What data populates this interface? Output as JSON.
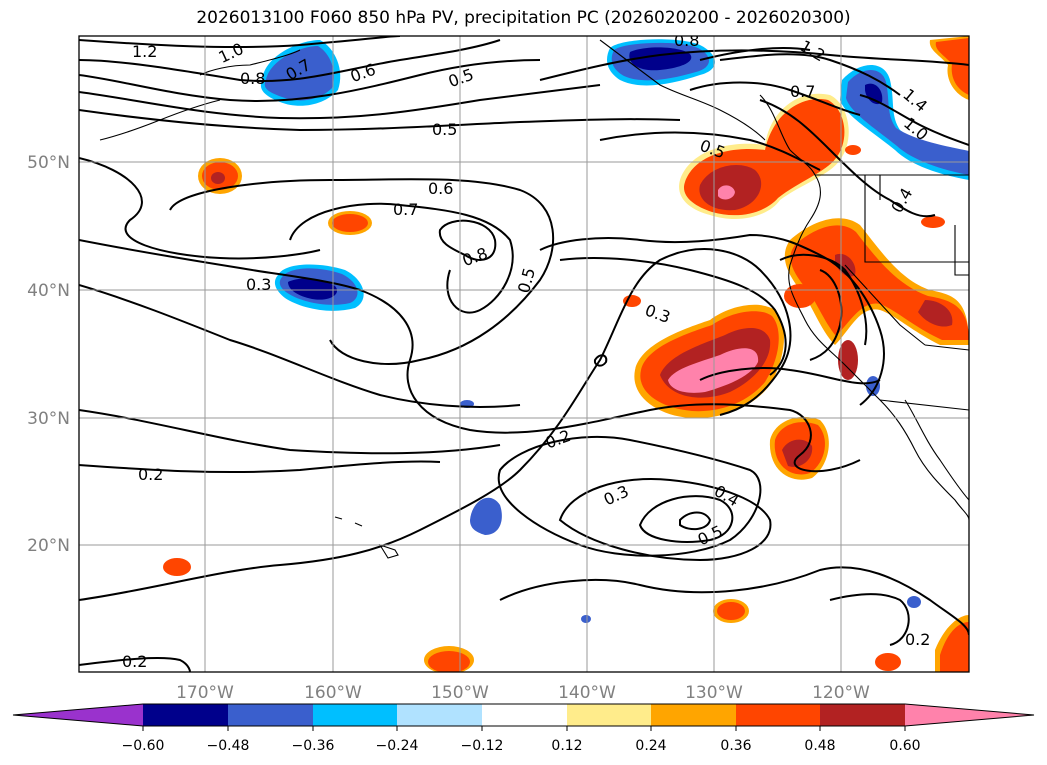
{
  "title": "2026013100 F060 850 hPa PV, precipitation PC (2026020200 - 2026020300)",
  "lon_ticks": [
    "170°W",
    "160°W",
    "150°W",
    "140°W",
    "130°W",
    "120°W"
  ],
  "lat_ticks": [
    "50°N",
    "40°N",
    "30°N",
    "20°N"
  ],
  "colorbar": {
    "colors": [
      "#9a32cd",
      "#00008b",
      "#3a5fcd",
      "#00bfff",
      "#b0e2ff",
      "#ffffff",
      "#ffec8b",
      "#ffa500",
      "#ff4500",
      "#b22222",
      "#ff82ab"
    ],
    "labels": [
      "−0.60",
      "−0.48",
      "−0.36",
      "−0.24",
      "−0.12",
      "0.12",
      "0.24",
      "0.36",
      "0.48",
      "0.60"
    ]
  },
  "contour_labels": [
    {
      "text": "1.2"
    },
    {
      "text": "1.0"
    },
    {
      "text": "0.8"
    },
    {
      "text": "0.7"
    },
    {
      "text": "0.6"
    },
    {
      "text": "0.5"
    },
    {
      "text": "0.5"
    },
    {
      "text": "0.6"
    },
    {
      "text": "0.7"
    },
    {
      "text": "0.8"
    },
    {
      "text": "0.5"
    },
    {
      "text": "0.3"
    },
    {
      "text": "0.3"
    },
    {
      "text": "0.2"
    },
    {
      "text": "0.2"
    },
    {
      "text": "0.3"
    },
    {
      "text": "0.4"
    },
    {
      "text": "0.5"
    },
    {
      "text": "0.2"
    },
    {
      "text": "0.2"
    },
    {
      "text": "0.8"
    },
    {
      "text": "0.5"
    },
    {
      "text": "0.7"
    },
    {
      "text": "1.2"
    },
    {
      "text": "1.4"
    },
    {
      "text": "1.0"
    },
    {
      "text": "0.4"
    }
  ]
}
